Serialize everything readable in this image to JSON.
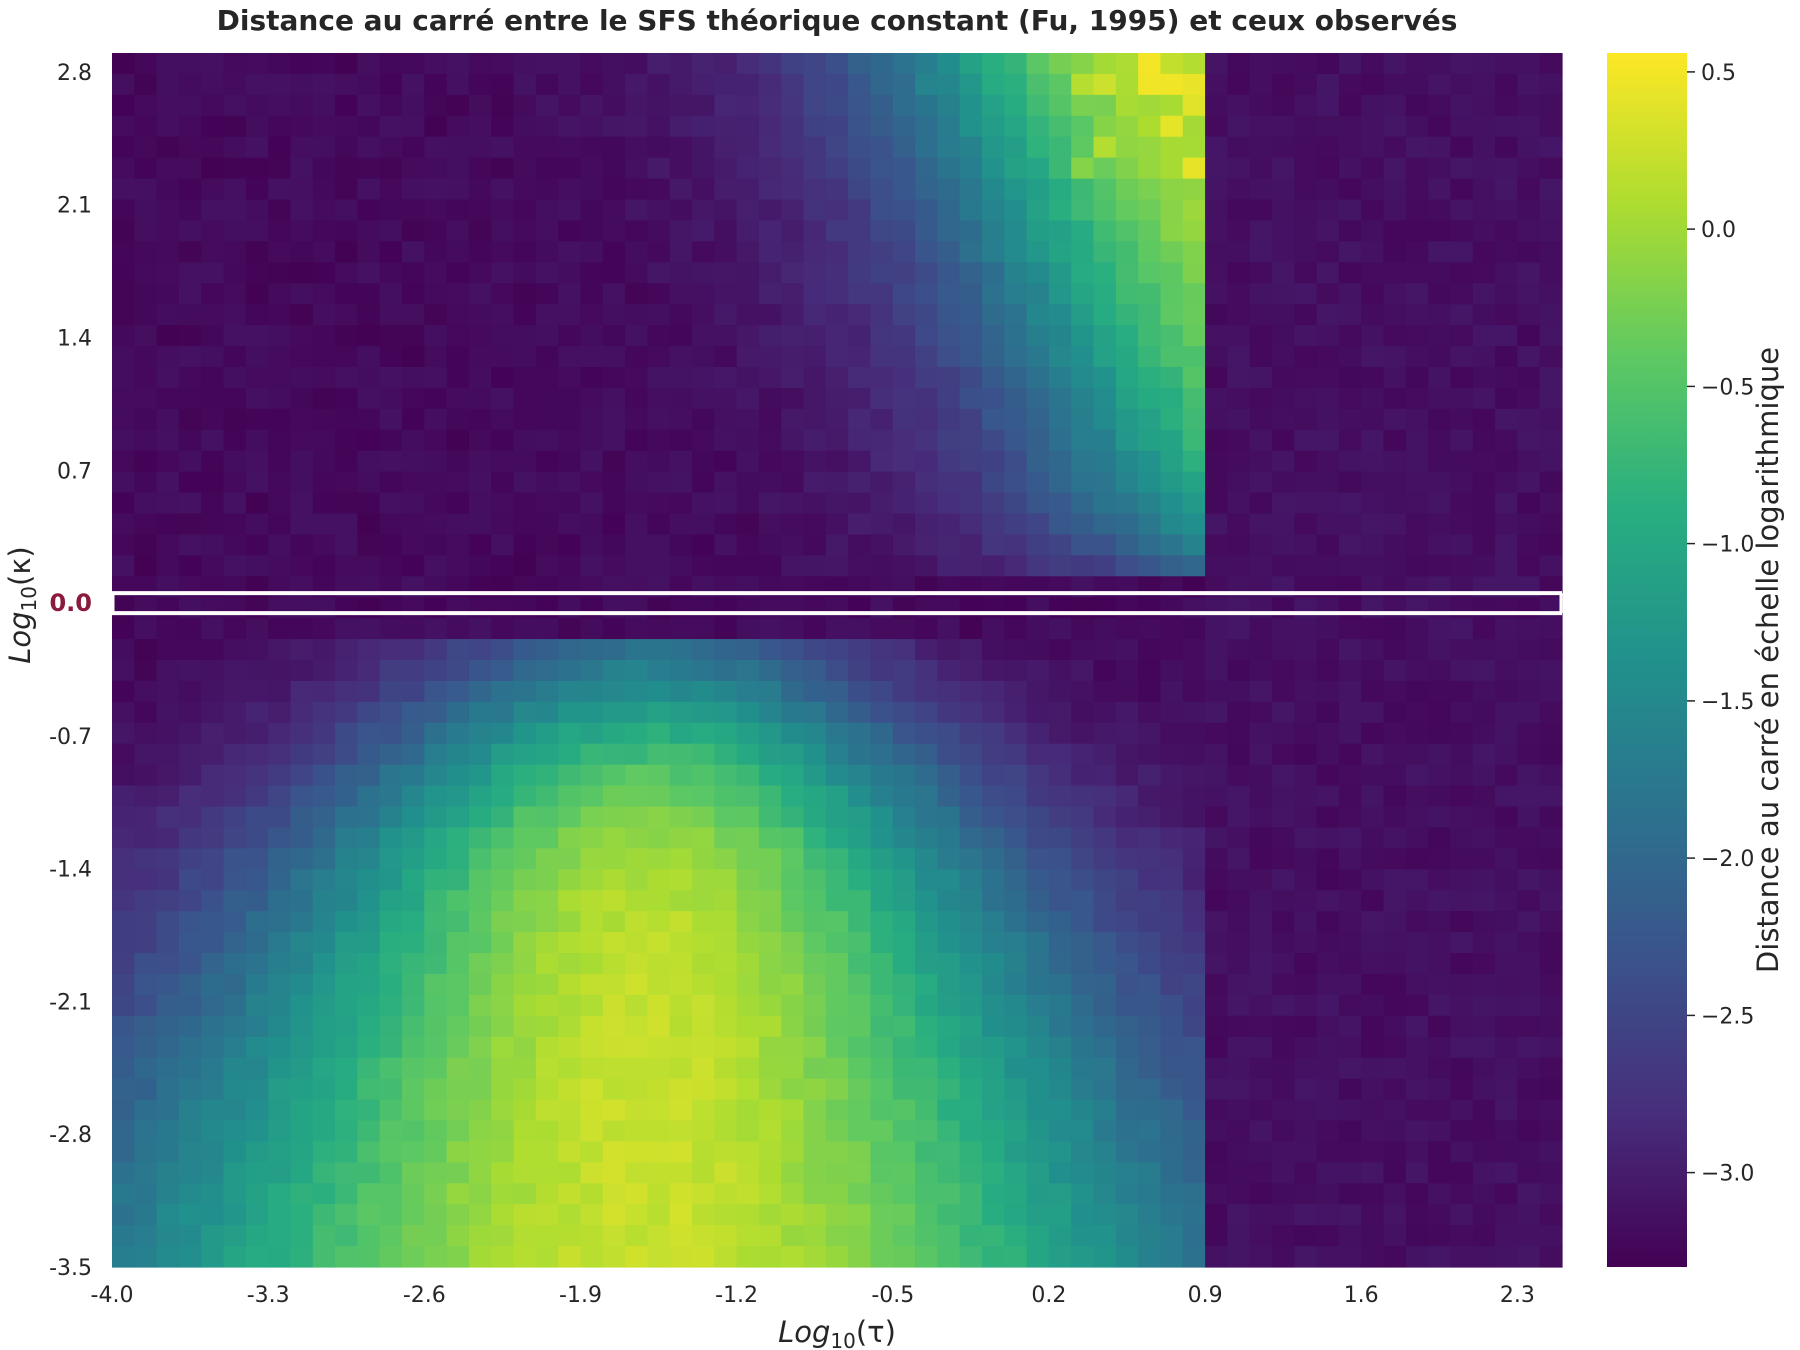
{
  "chart_data": {
    "type": "heatmap",
    "title": "Distance au carré entre le SFS théorique constant (Fu, 1995) et ceux observés",
    "xlabel": {
      "main": "Log",
      "sub": "10",
      "var": "(τ)"
    },
    "ylabel": {
      "main": "Log",
      "sub": "10",
      "var": "(κ)"
    },
    "colorbar_label": "Distance au carré en échelle logarithmique",
    "colormap": "viridis",
    "x_range": [
      -4.0,
      2.5
    ],
    "y_range": [
      -3.5,
      2.9
    ],
    "x_ticks": [
      "-4.0",
      "-3.3",
      "-2.6",
      "-1.9",
      "-1.2",
      "-0.5",
      "0.2",
      "0.9",
      "1.6",
      "2.3"
    ],
    "y_ticks": [
      "2.8",
      "2.1",
      "1.4",
      "0.7",
      "0.0",
      "-0.7",
      "-1.4",
      "-2.1",
      "-2.8",
      "-3.5"
    ],
    "highlight_y_tick": "0.0",
    "highlight_color": "#8b1a3c",
    "highlight_row_separator_color": "#ffffff",
    "colorbar_ticks": [
      "0.5",
      "0.0",
      "−0.5",
      "−1.0",
      "−1.5",
      "−2.0",
      "−2.5",
      "−3.0"
    ],
    "colorbar_range": [
      -3.3,
      0.56
    ],
    "grid": false,
    "n_cols": 65,
    "n_rows": 58,
    "value_model": "Estimated log squared distance; low (~−3.2) for log10(τ) > 0.9, high (~0.3–0.5) along a ridge near log10(τ)≈0.4–0.8 for log10(κ)>0, and a broad bright region for log10(κ)<0 centred near log10(τ)≈−1.6, log10(κ)≈−3.3"
  }
}
